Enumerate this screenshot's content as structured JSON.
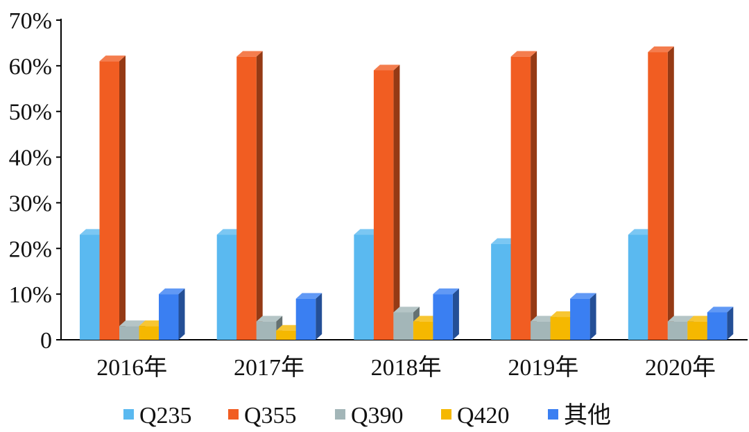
{
  "chart_data": {
    "type": "bar",
    "style": "3d-clustered",
    "title": "",
    "xlabel": "",
    "ylabel": "",
    "ylim": [
      0,
      70
    ],
    "y_ticks": [
      "0",
      "10%",
      "20%",
      "30%",
      "40%",
      "50%",
      "60%",
      "70%"
    ],
    "categories": [
      "2016年",
      "2017年",
      "2018年",
      "2019年",
      "2020年"
    ],
    "series": [
      {
        "name": "Q235",
        "color": "#5ab9f0",
        "values": [
          23,
          23,
          23,
          21,
          23
        ]
      },
      {
        "name": "Q355",
        "color": "#f15d22",
        "values": [
          61,
          62,
          59,
          62,
          63
        ]
      },
      {
        "name": "Q390",
        "color": "#a3b6b8",
        "values": [
          3,
          4,
          6,
          4,
          4
        ]
      },
      {
        "name": "Q420",
        "color": "#f5b800",
        "values": [
          3,
          2,
          4,
          5,
          4
        ]
      },
      {
        "name": "其他",
        "color": "#3a7ff2",
        "values": [
          10,
          9,
          10,
          9,
          6
        ]
      }
    ],
    "legend_position": "bottom",
    "grid": false
  }
}
